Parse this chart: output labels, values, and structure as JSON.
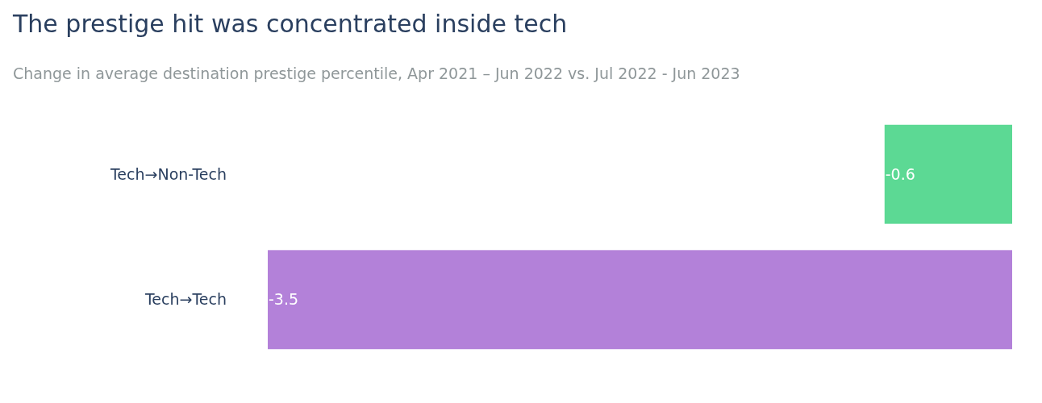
{
  "chart_data": {
    "type": "bar",
    "orientation": "horizontal",
    "title": "The prestige hit was concentrated inside tech",
    "subtitle": "Change in average destination prestige percentile, Apr 2021 – Jun 2022 vs. Jul 2022 - Jun 2023",
    "categories": [
      "Tech→Non-Tech",
      "Tech→Tech"
    ],
    "values": [
      -0.6,
      -3.5
    ],
    "colors": [
      "#5cd994",
      "#b381d9"
    ],
    "data_labels": true
  }
}
